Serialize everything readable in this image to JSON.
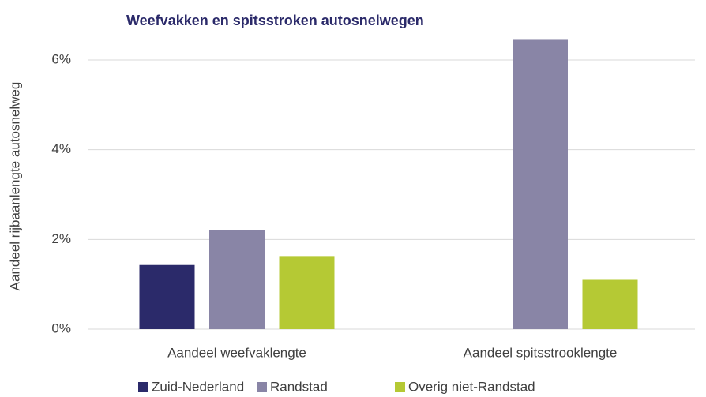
{
  "chart_data": {
    "type": "bar",
    "title": "Weefvakken en spitsstroken autosnelwegen",
    "y_label": "Aandeel rijbaanlengte autosnelweg",
    "categories": [
      "Aandeel weefvaklengte",
      "Aandeel spitsstrooklengte"
    ],
    "series": [
      {
        "name": "Zuid-Nederland",
        "color": "#2b2a6a",
        "values": [
          1.43,
          0
        ]
      },
      {
        "name": "Randstad",
        "color": "#8985a6",
        "values": [
          2.2,
          6.45
        ]
      },
      {
        "name": "Overig niet-Randstad",
        "color": "#b5c934",
        "values": [
          1.63,
          1.1
        ]
      }
    ],
    "ylim": [
      0,
      7
    ],
    "yticks": [
      {
        "value": 0,
        "label": "0%"
      },
      {
        "value": 2,
        "label": "2%"
      },
      {
        "value": 4,
        "label": "4%"
      },
      {
        "value": 6,
        "label": "6%"
      }
    ],
    "grid": true,
    "legend": "bottom"
  }
}
